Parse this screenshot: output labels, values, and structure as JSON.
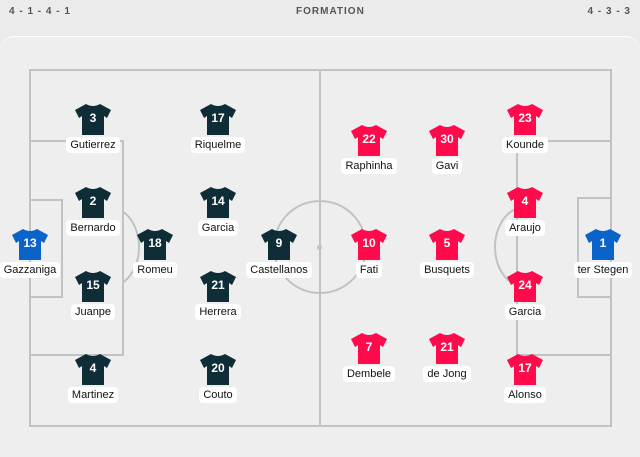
{
  "header": {
    "home_formation": "4 - 1 - 4 - 1",
    "title": "FORMATION",
    "away_formation": "4 - 3 - 3"
  },
  "colors": {
    "home": "#0f2d36",
    "home_gk": "#0a63c8",
    "away": "#ff0a4b",
    "away_gk": "#0a63c8",
    "lines": "#bfc3c5"
  },
  "players": [
    {
      "number": "3",
      "name": "Gutierrez",
      "team": "home"
    },
    {
      "number": "17",
      "name": "Riquelme",
      "team": "home"
    },
    {
      "number": "2",
      "name": "Bernardo",
      "team": "home"
    },
    {
      "number": "14",
      "name": "Garcia",
      "team": "home"
    },
    {
      "number": "13",
      "name": "Gazzaniga",
      "team": "home_gk"
    },
    {
      "number": "18",
      "name": "Romeu",
      "team": "home"
    },
    {
      "number": "9",
      "name": "Castellanos",
      "team": "home"
    },
    {
      "number": "15",
      "name": "Juanpe",
      "team": "home"
    },
    {
      "number": "21",
      "name": "Herrera",
      "team": "home"
    },
    {
      "number": "4",
      "name": "Martinez",
      "team": "home"
    },
    {
      "number": "20",
      "name": "Couto",
      "team": "home"
    },
    {
      "number": "22",
      "name": "Raphinha",
      "team": "away"
    },
    {
      "number": "30",
      "name": "Gavi",
      "team": "away"
    },
    {
      "number": "23",
      "name": "Kounde",
      "team": "away"
    },
    {
      "number": "4",
      "name": "Araujo",
      "team": "away"
    },
    {
      "number": "10",
      "name": "Fati",
      "team": "away"
    },
    {
      "number": "5",
      "name": "Busquets",
      "team": "away"
    },
    {
      "number": "1",
      "name": "ter Stegen",
      "team": "away_gk"
    },
    {
      "number": "24",
      "name": "Garcia",
      "team": "away"
    },
    {
      "number": "7",
      "name": "Dembele",
      "team": "away"
    },
    {
      "number": "21",
      "name": "de Jong",
      "team": "away"
    },
    {
      "number": "17",
      "name": "Alonso",
      "team": "away"
    }
  ]
}
